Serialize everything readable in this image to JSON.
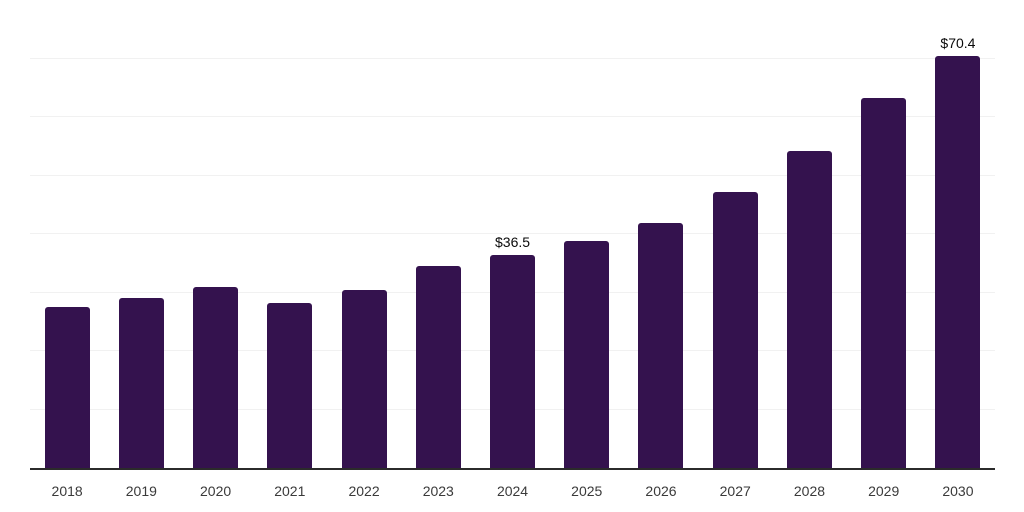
{
  "chart_data": {
    "type": "bar",
    "title": "",
    "xlabel": "",
    "ylabel": "",
    "categories": [
      "2018",
      "2019",
      "2020",
      "2021",
      "2022",
      "2023",
      "2024",
      "2025",
      "2026",
      "2027",
      "2028",
      "2029",
      "2030"
    ],
    "values": [
      27.6,
      29.1,
      30.9,
      28.2,
      30.4,
      34.5,
      36.5,
      38.8,
      41.9,
      47.2,
      54.2,
      63.2,
      70.4
    ],
    "data_labels": [
      "",
      "",
      "",
      "",
      "",
      "",
      "$36.5",
      "",
      "",
      "",
      "",
      "",
      "$70.4"
    ],
    "ylim": [
      0,
      80
    ],
    "grid_step": 10,
    "grid": true,
    "legend": false,
    "y_axis_tick_labels_visible": false
  },
  "colors": {
    "bar": "#34124e",
    "axis": "#2b2b2b",
    "gridline": "#f1f1f1",
    "tick_label": "#3a3a3a",
    "value_label": "#0a0a0a",
    "background": "#ffffff"
  }
}
